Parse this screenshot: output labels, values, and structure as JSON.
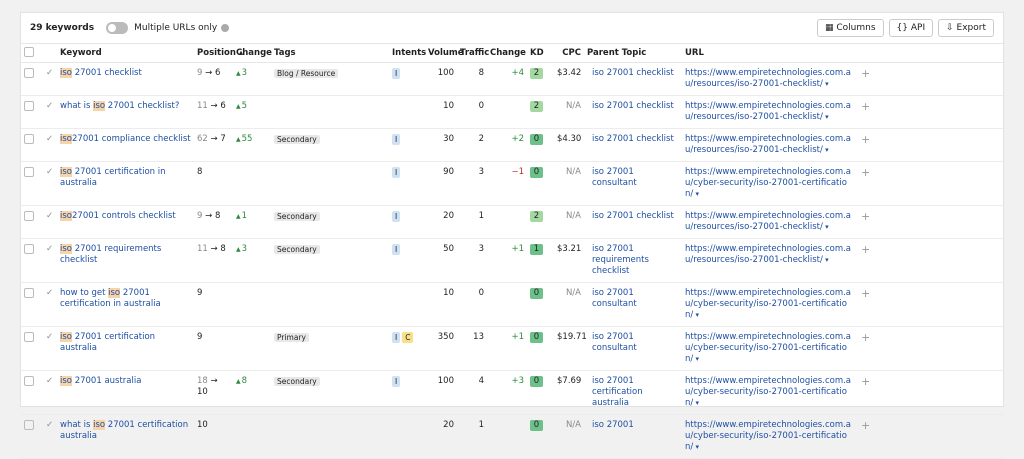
{
  "toolbar": {
    "count": "29 keywords",
    "toggle_label": "Multiple URLs only",
    "buttons": [
      "Columns",
      "API",
      "Export"
    ]
  },
  "table": {
    "headers": [
      "Keyword",
      "Position",
      "Change",
      "Tags",
      "Intents",
      "Volume",
      "Traffic",
      "Change",
      "KD",
      "CPC",
      "Parent Topic",
      "URL"
    ],
    "rows": [
      {
        "keyword": [
          {
            "text": "iso",
            "hl": true
          },
          {
            "text": " 27001 checklist"
          }
        ],
        "position_from": 9,
        "position": 6,
        "position_change": 3,
        "tags": [
          "Blog / Resource"
        ],
        "intents": [
          "I"
        ],
        "volume": 100,
        "traffic": 8,
        "traffic_change": "+4",
        "kd": 2,
        "cpc": "$3.42",
        "parent_topic": "iso 27001 checklist",
        "url": "https://www.empiretechnologies.com.au/resources/iso-27001-checklist/"
      },
      {
        "keyword": [
          {
            "text": "what is "
          },
          {
            "text": "iso",
            "hl": true
          },
          {
            "text": " 27001 checklist?"
          }
        ],
        "position_from": 11,
        "position": 6,
        "position_change": 5,
        "volume": 10,
        "traffic": 0,
        "kd": 2,
        "cpc": "N/A",
        "parent_topic": "iso 27001 checklist",
        "url": "https://www.empiretechnologies.com.au/resources/iso-27001-checklist/"
      },
      {
        "keyword": [
          {
            "text": "iso",
            "hl": true
          },
          {
            "text": "27001 compliance checklist"
          }
        ],
        "position_from": 62,
        "position": 7,
        "position_change": 55,
        "tags": [
          "Secondary"
        ],
        "intents": [
          "I"
        ],
        "volume": 30,
        "traffic": 2,
        "traffic_change": "+2",
        "kd": 0,
        "cpc": "$4.30",
        "parent_topic": "iso 27001 checklist",
        "url": "https://www.empiretechnologies.com.au/resources/iso-27001-checklist/"
      },
      {
        "keyword": [
          {
            "text": "iso",
            "hl": true
          },
          {
            "text": " 27001 certification in australia"
          }
        ],
        "position": 8,
        "intents": [
          "I"
        ],
        "volume": 90,
        "traffic": 3,
        "traffic_change": "−1",
        "kd": 0,
        "cpc": "N/A",
        "parent_topic": "iso 27001 consultant",
        "url": "https://www.empiretechnologies.com.au/cyber-security/iso-27001-certification/"
      },
      {
        "keyword": [
          {
            "text": "iso",
            "hl": true
          },
          {
            "text": "27001 controls checklist"
          }
        ],
        "position_from": 9,
        "position": 8,
        "position_change": 1,
        "tags": [
          "Secondary"
        ],
        "intents": [
          "I"
        ],
        "volume": 20,
        "traffic": 1,
        "kd": 2,
        "cpc": "N/A",
        "parent_topic": "iso 27001 checklist",
        "url": "https://www.empiretechnologies.com.au/resources/iso-27001-checklist/"
      },
      {
        "keyword": [
          {
            "text": "iso",
            "hl": true
          },
          {
            "text": " 27001 requirements checklist"
          }
        ],
        "position_from": 11,
        "position": 8,
        "position_change": 3,
        "tags": [
          "Secondary"
        ],
        "intents": [
          "I"
        ],
        "volume": 50,
        "traffic": 3,
        "traffic_change": "+1",
        "kd": 1,
        "cpc": "$3.21",
        "parent_topic": "iso 27001 requirements checklist",
        "url": "https://www.empiretechnologies.com.au/resources/iso-27001-checklist/"
      },
      {
        "keyword": [
          {
            "text": "how to get "
          },
          {
            "text": "iso",
            "hl": true
          },
          {
            "text": " 27001 certification in australia"
          }
        ],
        "position": 9,
        "volume": 10,
        "traffic": 0,
        "kd": 0,
        "cpc": "N/A",
        "parent_topic": "iso 27001 consultant",
        "url": "https://www.empiretechnologies.com.au/cyber-security/iso-27001-certification/"
      },
      {
        "keyword": [
          {
            "text": "iso",
            "hl": true
          },
          {
            "text": " 27001 certification australia"
          }
        ],
        "position": 9,
        "tags": [
          "Primary"
        ],
        "intents": [
          "I",
          "C"
        ],
        "volume": 350,
        "traffic": 13,
        "traffic_change": "+1",
        "kd": 0,
        "cpc": "$19.71",
        "parent_topic": "iso 27001 consultant",
        "url": "https://www.empiretechnologies.com.au/cyber-security/iso-27001-certification/"
      },
      {
        "keyword": [
          {
            "text": "iso",
            "hl": true
          },
          {
            "text": " 27001 australia"
          }
        ],
        "position_from": 18,
        "position": 10,
        "position_change": 8,
        "tags": [
          "Secondary"
        ],
        "intents": [
          "I"
        ],
        "volume": 100,
        "traffic": 4,
        "traffic_change": "+3",
        "kd": 0,
        "cpc": "$7.69",
        "parent_topic": "iso 27001 certification australia",
        "url": "https://www.empiretechnologies.com.au/cyber-security/iso-27001-certification/"
      },
      {
        "keyword": [
          {
            "text": "what is "
          },
          {
            "text": "iso",
            "hl": true
          },
          {
            "text": " 27001 certification australia"
          }
        ],
        "position": 10,
        "volume": 20,
        "traffic": 1,
        "kd": 0,
        "cpc": "N/A",
        "parent_topic": "iso 27001",
        "url": "https://www.empiretechnologies.com.au/cyber-security/iso-27001-certification/"
      }
    ]
  }
}
